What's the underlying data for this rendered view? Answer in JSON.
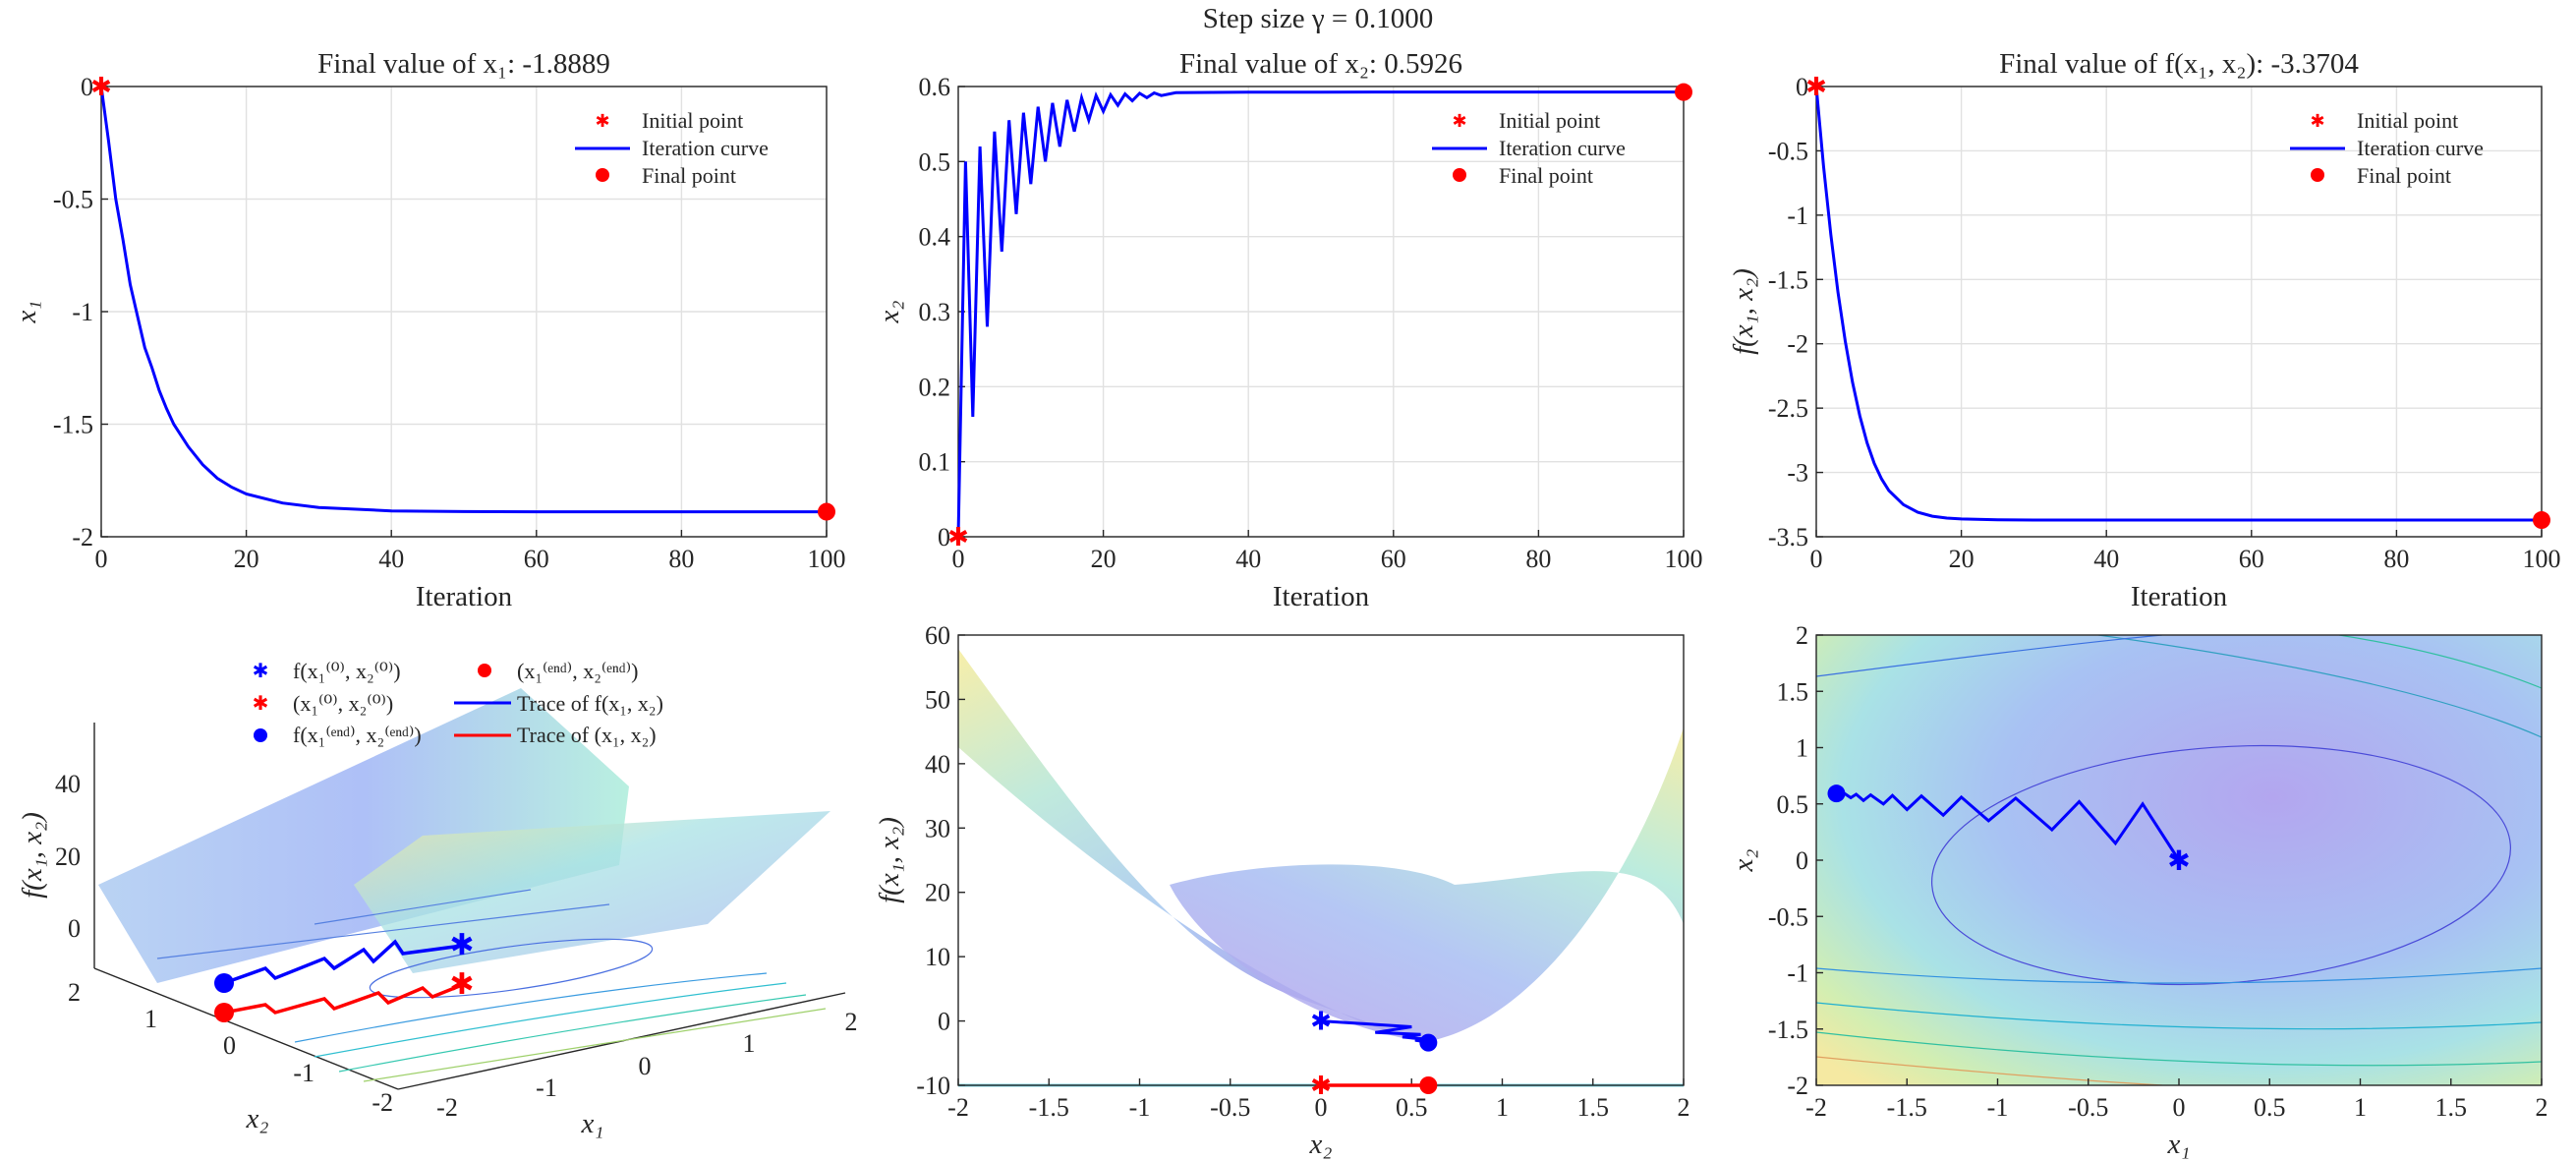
{
  "suptitle": "Step size γ = 0.1000",
  "colors": {
    "curve": "#0000ff",
    "marker": "#ff0000",
    "red_trace": "#ff0000"
  },
  "chart_data": [
    {
      "type": "line",
      "id": "x1_vs_iter",
      "title": "Final value of x₁: -1.8889",
      "xlabel": "Iteration",
      "ylabel": "x₁",
      "xlim": [
        0,
        100
      ],
      "ylim": [
        -2,
        0
      ],
      "xticks": [
        "0",
        "20",
        "40",
        "60",
        "80",
        "100"
      ],
      "yticks": [
        "0",
        "-0.5",
        "-1",
        "-1.5",
        "-2"
      ],
      "grid": true,
      "legend": {
        "position": "top-right",
        "entries": [
          "Initial point",
          "Iteration curve",
          "Final point"
        ]
      },
      "initial_point": [
        0,
        0
      ],
      "final_point": [
        100,
        -1.8889
      ],
      "series": [
        {
          "name": "Iteration curve",
          "x": [
            0,
            1,
            2,
            3,
            4,
            5,
            6,
            7,
            8,
            9,
            10,
            12,
            14,
            16,
            18,
            20,
            25,
            30,
            40,
            50,
            60,
            80,
            100
          ],
          "values": [
            0,
            -0.24,
            -0.5,
            -0.68,
            -0.88,
            -1.02,
            -1.16,
            -1.25,
            -1.35,
            -1.43,
            -1.5,
            -1.6,
            -1.68,
            -1.74,
            -1.78,
            -1.81,
            -1.85,
            -1.87,
            -1.885,
            -1.888,
            -1.8889,
            -1.8889,
            -1.8889
          ]
        }
      ]
    },
    {
      "type": "line",
      "id": "x2_vs_iter",
      "title": "Final value of x₂: 0.5926",
      "xlabel": "Iteration",
      "ylabel": "x₂",
      "xlim": [
        0,
        100
      ],
      "ylim": [
        0,
        0.6
      ],
      "xticks": [
        "0",
        "20",
        "40",
        "60",
        "80",
        "100"
      ],
      "yticks": [
        "0",
        "0.1",
        "0.2",
        "0.3",
        "0.4",
        "0.5",
        "0.6"
      ],
      "grid": true,
      "legend": {
        "position": "top-right",
        "entries": [
          "Initial point",
          "Iteration curve",
          "Final point"
        ]
      },
      "initial_point": [
        0,
        0
      ],
      "final_point": [
        100,
        0.5926
      ],
      "series": [
        {
          "name": "Iteration curve",
          "x": [
            0,
            1,
            2,
            3,
            4,
            5,
            6,
            7,
            8,
            9,
            10,
            11,
            12,
            13,
            14,
            15,
            16,
            17,
            18,
            19,
            20,
            21,
            22,
            23,
            24,
            25,
            26,
            27,
            28,
            30,
            35,
            40,
            50,
            60,
            80,
            100
          ],
          "values": [
            0,
            0.5,
            0.16,
            0.52,
            0.28,
            0.54,
            0.38,
            0.555,
            0.43,
            0.565,
            0.47,
            0.573,
            0.5,
            0.578,
            0.52,
            0.582,
            0.54,
            0.585,
            0.555,
            0.588,
            0.567,
            0.589,
            0.575,
            0.59,
            0.581,
            0.591,
            0.585,
            0.5915,
            0.588,
            0.5918,
            0.5922,
            0.5924,
            0.5925,
            0.5926,
            0.5926,
            0.5926
          ]
        }
      ]
    },
    {
      "type": "line",
      "id": "f_vs_iter",
      "title": "Final value of f(x₁, x₂): -3.3704",
      "xlabel": "Iteration",
      "ylabel": "f(x₁, x₂)",
      "xlim": [
        0,
        100
      ],
      "ylim": [
        -3.5,
        0
      ],
      "xticks": [
        "0",
        "20",
        "40",
        "60",
        "80",
        "100"
      ],
      "yticks": [
        "0",
        "-0.5",
        "-1",
        "-1.5",
        "-2",
        "-2.5",
        "-3",
        "-3.5"
      ],
      "grid": true,
      "legend": {
        "position": "top-right",
        "entries": [
          "Initial point",
          "Iteration curve",
          "Final point"
        ]
      },
      "initial_point": [
        0,
        0
      ],
      "final_point": [
        100,
        -3.3704
      ],
      "series": [
        {
          "name": "Iteration curve",
          "x": [
            0,
            1,
            2,
            3,
            4,
            5,
            6,
            7,
            8,
            9,
            10,
            12,
            14,
            16,
            18,
            20,
            25,
            30,
            40,
            60,
            80,
            100
          ],
          "values": [
            0,
            -0.62,
            -1.15,
            -1.6,
            -1.98,
            -2.3,
            -2.56,
            -2.77,
            -2.93,
            -3.05,
            -3.14,
            -3.25,
            -3.31,
            -3.34,
            -3.355,
            -3.362,
            -3.368,
            -3.37,
            -3.3704,
            -3.3704,
            -3.3704,
            -3.3704
          ]
        }
      ]
    },
    {
      "type": "surface3d",
      "id": "surface_view",
      "zlabel": "f(x₁, x₂)",
      "xlabel": "x₁",
      "ylabel": "x₂",
      "zticks": [
        "0",
        "20",
        "40"
      ],
      "x1ticks": [
        "-2",
        "-1",
        "0",
        "1",
        "2"
      ],
      "x2ticks": [
        "2",
        "1",
        "0",
        "-1",
        "-2"
      ],
      "legend": {
        "position": "top",
        "entries": [
          "f(x₁⁽⁰⁾, x₂⁽⁰⁾)",
          "(x₁⁽⁰⁾, x₂⁽⁰⁾)",
          "f(x₁⁽ᵉⁿᵈ⁾, x₂⁽ᵉⁿᵈ⁾)",
          "(x₁⁽ᵉⁿᵈ⁾, x₂⁽ᵉⁿᵈ⁾)",
          "Trace of f(x₁, x₂)",
          "Trace of (x₁, x₂)"
        ]
      }
    },
    {
      "type": "surface_side",
      "id": "side_view",
      "xlabel": "x₂",
      "ylabel": "f(x₁, x₂)",
      "xlim": [
        -2,
        2
      ],
      "ylim": [
        -10,
        60
      ],
      "xticks": [
        "-2",
        "-1.5",
        "-1",
        "-0.5",
        "0",
        "0.5",
        "1",
        "1.5",
        "2"
      ],
      "yticks": [
        "60",
        "50",
        "40",
        "30",
        "20",
        "10",
        "0",
        "-10"
      ],
      "trace": {
        "x": [
          0,
          0.5,
          0.3,
          0.55,
          0.45,
          0.57,
          0.52,
          0.59,
          0.5926
        ],
        "values": [
          0,
          -0.9,
          -1.8,
          -2.1,
          -2.5,
          -2.8,
          -3.0,
          -3.3,
          -3.3704
        ]
      }
    },
    {
      "type": "contour",
      "id": "contour_view",
      "xlabel": "x₁",
      "ylabel": "x₂",
      "xlim": [
        -2,
        2
      ],
      "ylim": [
        -2,
        2
      ],
      "xticks": [
        "-2",
        "-1.5",
        "-1",
        "-0.5",
        "0",
        "0.5",
        "1",
        "1.5",
        "2"
      ],
      "yticks": [
        "2",
        "1.5",
        "1",
        "0.5",
        "0",
        "-0.5",
        "-1",
        "-1.5",
        "-2"
      ],
      "path": {
        "x1": [
          0,
          -0.2,
          -0.35,
          -0.55,
          -0.7,
          -0.9,
          -1.05,
          -1.2,
          -1.3,
          -1.42,
          -1.5,
          -1.58,
          -1.63,
          -1.7,
          -1.74,
          -1.78,
          -1.81,
          -1.84,
          -1.86,
          -1.8889
        ],
        "x2": [
          0,
          0.5,
          0.15,
          0.52,
          0.27,
          0.55,
          0.35,
          0.56,
          0.4,
          0.57,
          0.45,
          0.575,
          0.5,
          0.58,
          0.53,
          0.585,
          0.555,
          0.588,
          0.575,
          0.5926
        ]
      }
    }
  ]
}
